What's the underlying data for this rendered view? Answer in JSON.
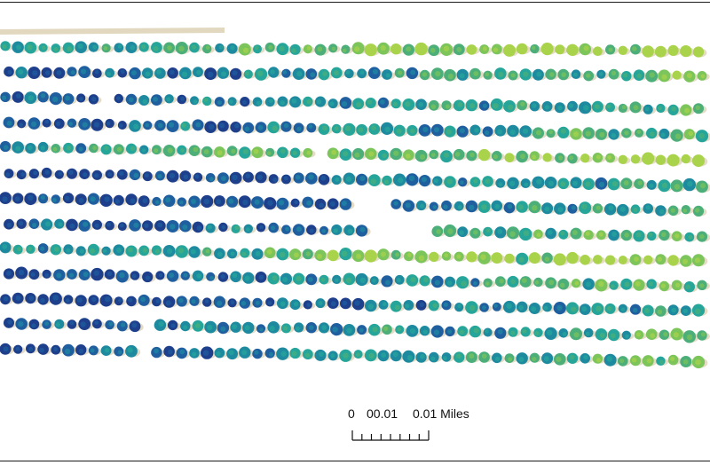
{
  "map": {
    "layer": "orchard-tree-canopy-vigor",
    "palette": [
      "#1d3f8c",
      "#1f5fa0",
      "#1e8aa0",
      "#26a69a",
      "#4caf7a",
      "#7cc55a",
      "#a9d34a"
    ],
    "tree_rows": 13
  },
  "scale_bar": {
    "label_zero": "0",
    "label_mid": "00.01",
    "label_end": "0.01 Miles",
    "subdivisions": 8
  }
}
